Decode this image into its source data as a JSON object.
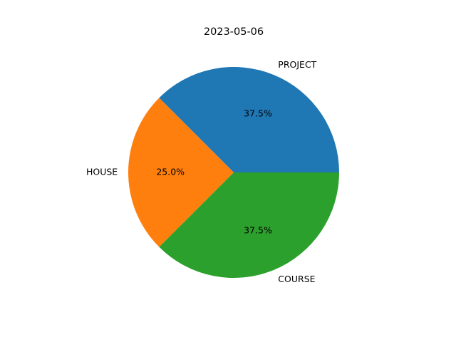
{
  "chart_data": {
    "type": "pie",
    "title": "2023-05-06",
    "start_angle_deg": 0,
    "direction": "counterclockwise",
    "slices": [
      {
        "label": "PROJECT",
        "value": 37.5,
        "pct_label": "37.5%",
        "color": "#1f77b4"
      },
      {
        "label": "HOUSE",
        "value": 25.0,
        "pct_label": "25.0%",
        "color": "#ff7f0e"
      },
      {
        "label": "COURSE",
        "value": 37.5,
        "pct_label": "37.5%",
        "color": "#2ca02c"
      }
    ]
  }
}
